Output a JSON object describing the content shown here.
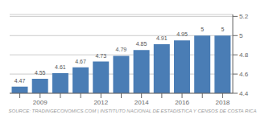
{
  "chart_data": {
    "type": "bar",
    "categories": [
      null,
      "2009",
      null,
      null,
      "2012",
      null,
      "2014",
      null,
      "2016",
      null,
      "2018"
    ],
    "values": [
      4.47,
      4.55,
      4.61,
      4.67,
      4.73,
      4.79,
      4.85,
      4.91,
      4.95,
      5.0,
      5.0
    ],
    "color": "#4a7db5",
    "ylim": [
      4.4,
      5.22
    ],
    "yticks": [
      4.4,
      4.6,
      4.8,
      5,
      5.2
    ],
    "grid": true,
    "data_labels": true,
    "annotations": [
      "SOURCE: TRADINGECONOMICS.COM | INSTITUTO NACIONAL DE ESTADISTICA Y CENSOS DE COSTA RICA"
    ]
  }
}
